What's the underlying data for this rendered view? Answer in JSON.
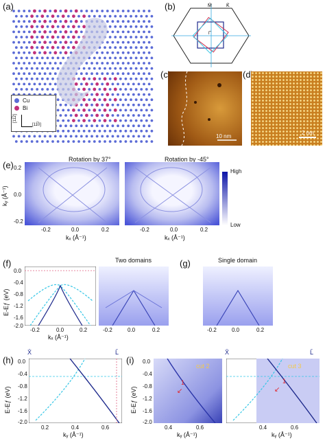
{
  "panels": {
    "a": {
      "label": "(a)",
      "legend": {
        "cu": "Cu",
        "bi": "Bi",
        "dir_y": "[11̅2]",
        "dir_x": "[11̅0]"
      }
    },
    "b": {
      "label": "(b)",
      "m_bar": "M̄",
      "k_bar": "K̄",
      "gamma": "Γ̄"
    },
    "c": {
      "label": "(c)",
      "scalebar": "10 nm"
    },
    "d": {
      "label": "(d)",
      "scalebar": "2 nm"
    },
    "e": {
      "label": "(e)",
      "title_left": "Rotation by 37°",
      "title_right": "Rotation by -45°",
      "ylabel": "kᵧ (Å⁻¹)",
      "xlabel": "kₓ (Å⁻¹)",
      "yticks": [
        "0.2",
        "0.0",
        "-0.2"
      ],
      "xticks": [
        "-0.2",
        "0.0",
        "0.2"
      ],
      "colorbar_high": "High",
      "colorbar_low": "Low"
    },
    "f": {
      "label": "(f)",
      "title": "Two domains",
      "ylabel": "E-Eƒ (eV)",
      "xlabel": "kₓ (Å⁻¹)",
      "yticks": [
        "0.0",
        "-0.4",
        "-0.8",
        "-1.2",
        "-1.6",
        "-2.0"
      ],
      "xticks": [
        "-0.2",
        "0.0",
        "0.2"
      ]
    },
    "g": {
      "label": "(g)",
      "title": "Single domain",
      "xticks": [
        "-0.2",
        "0.0",
        "0.2"
      ]
    },
    "h": {
      "label": "(h)",
      "x_bar": "X̄",
      "l_bar": "L̄",
      "ylabel": "E-Eƒ (eV)",
      "xlabel": "kᵧ (Å⁻¹)",
      "yticks": [
        "0.0",
        "-0.4",
        "-0.8",
        "-1.2",
        "-1.6",
        "-2.0"
      ],
      "xticks": [
        "0.2",
        "0.4",
        "0.6"
      ]
    },
    "i": {
      "label": "(i)",
      "cut_left": "cut 2",
      "cut_right": "cut 3",
      "marker": "1",
      "x_bar": "X̄",
      "l_bar": "L̄",
      "ylabel": "E-Eƒ (eV)",
      "xlabel": "kᵧ (Å⁻¹)",
      "yticks": [
        "0.0",
        "-0.4",
        "-0.8",
        "-1.2",
        "-1.6",
        "-2.0"
      ],
      "xticks": [
        "0.4",
        "0.6"
      ],
      "xticks_right": [
        "0.4",
        "0.6"
      ]
    }
  },
  "colors": {
    "navy": "#1e2a8c",
    "cyan": "#33c6e6",
    "blue": "#4b56d8",
    "cu": "#5b6bd6",
    "bi": "#c0307a",
    "gold": "#f2c94c"
  }
}
